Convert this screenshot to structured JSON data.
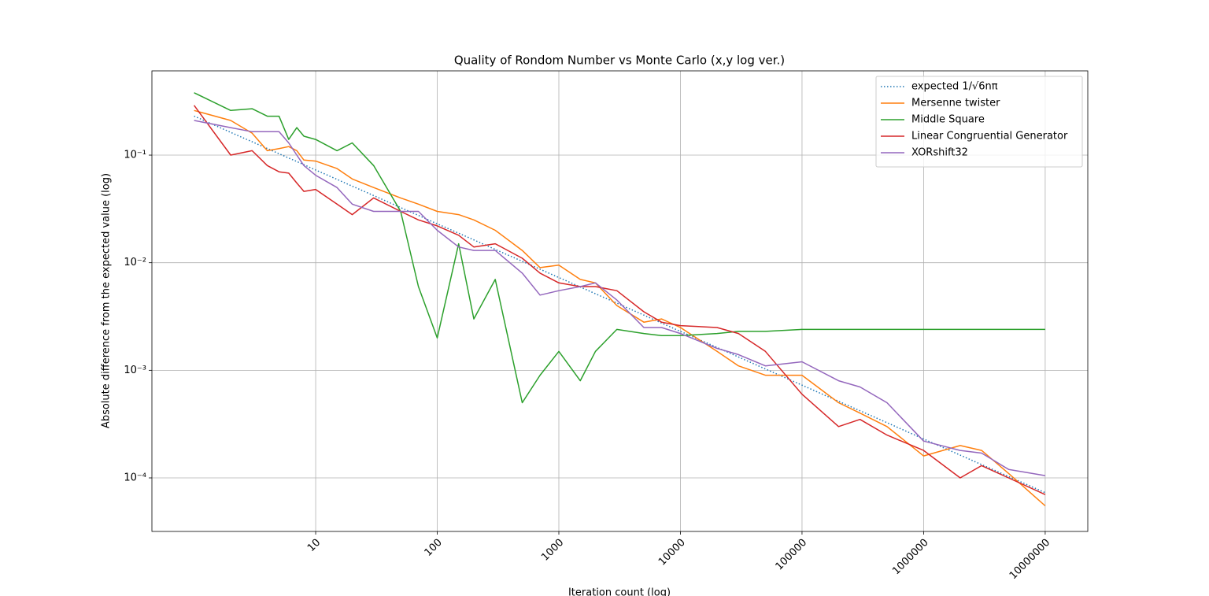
{
  "chart_data": {
    "type": "line",
    "title": "Quality of Rondom Number vs Monte Carlo (x,y log ver.)",
    "xlabel": "Iteration count (log)",
    "ylabel": "Absolute difference from the expected value (log)",
    "xscale": "log",
    "yscale": "log",
    "grid": true,
    "legend": "upper right",
    "xlim": [
      0.45,
      22400000
    ],
    "ylim": [
      3.18e-05,
      0.607
    ],
    "xticks": [
      10,
      100,
      1000,
      10000,
      100000,
      1000000,
      10000000
    ],
    "yticks": [
      {
        "value": 0.1,
        "label": "10⁻¹"
      },
      {
        "value": 0.01,
        "label": "10⁻²"
      },
      {
        "value": 0.001,
        "label": "10⁻³"
      },
      {
        "value": 0.0001,
        "label": "10⁻⁴"
      }
    ],
    "x": [
      1,
      2,
      3,
      4,
      5,
      6,
      7,
      8,
      10,
      15,
      20,
      30,
      50,
      70,
      100,
      150,
      200,
      300,
      500,
      700,
      1000,
      1500,
      2000,
      3000,
      5000,
      7000,
      10000,
      20000,
      30000,
      50000,
      100000,
      200000,
      300000,
      500000,
      1000000,
      2000000,
      3000000,
      5000000,
      10000000
    ],
    "series": [
      {
        "name": "expected 1/√6nπ",
        "color": "#1f77b4",
        "linestyle": "dotted",
        "values": [
          0.2303,
          0.1629,
          0.133,
          0.1152,
          0.103,
          0.094,
          0.0871,
          0.0814,
          0.0728,
          0.0595,
          0.0515,
          0.0421,
          0.0326,
          0.0275,
          0.023,
          0.0188,
          0.0163,
          0.0133,
          0.0103,
          0.0087,
          0.00728,
          0.00595,
          0.00515,
          0.00421,
          0.00326,
          0.00275,
          0.0023,
          0.00163,
          0.00133,
          0.00103,
          0.000728,
          0.000515,
          0.000421,
          0.000326,
          0.00023,
          0.000163,
          0.000133,
          0.000103,
          7.28e-05
        ]
      },
      {
        "name": "Mersenne twister",
        "color": "#ff7f0e",
        "values": [
          0.26,
          0.21,
          0.16,
          0.11,
          0.115,
          0.12,
          0.11,
          0.09,
          0.088,
          0.075,
          0.06,
          0.05,
          0.04,
          0.035,
          0.03,
          0.028,
          0.025,
          0.02,
          0.013,
          0.009,
          0.0095,
          0.007,
          0.0065,
          0.004,
          0.0028,
          0.003,
          0.0025,
          0.0015,
          0.0011,
          0.0009,
          0.0009,
          0.0005,
          0.0004,
          0.0003,
          0.00016,
          0.0002,
          0.00018,
          0.00011,
          5.5e-05
        ]
      },
      {
        "name": "Middle Square",
        "color": "#2ca02c",
        "values": [
          0.38,
          0.26,
          0.27,
          0.23,
          0.23,
          0.14,
          0.18,
          0.15,
          0.14,
          0.11,
          0.13,
          0.08,
          0.03,
          0.006,
          0.002,
          0.015,
          0.003,
          0.007,
          0.0005,
          0.0009,
          0.0015,
          0.0008,
          0.0015,
          0.0024,
          0.0022,
          0.0021,
          0.0021,
          0.0022,
          0.0023,
          0.0023,
          0.0024,
          0.0024,
          0.0024,
          0.0024,
          0.0024,
          0.0024,
          0.0024,
          0.0024,
          0.0024
        ]
      },
      {
        "name": "Linear Congruential Generator",
        "color": "#d62728",
        "values": [
          0.29,
          0.1,
          0.11,
          0.08,
          0.07,
          0.068,
          0.055,
          0.046,
          0.048,
          0.035,
          0.028,
          0.04,
          0.03,
          0.025,
          0.022,
          0.018,
          0.014,
          0.015,
          0.011,
          0.008,
          0.0065,
          0.006,
          0.006,
          0.0055,
          0.0035,
          0.0028,
          0.0026,
          0.0025,
          0.0022,
          0.0015,
          0.0006,
          0.0003,
          0.00035,
          0.00025,
          0.00018,
          0.0001,
          0.00013,
          0.0001,
          7e-05
        ]
      },
      {
        "name": "XORshift32",
        "color": "#9467bd",
        "values": [
          0.21,
          0.18,
          0.165,
          0.165,
          0.165,
          0.13,
          0.1,
          0.08,
          0.065,
          0.05,
          0.035,
          0.03,
          0.03,
          0.03,
          0.02,
          0.014,
          0.013,
          0.013,
          0.008,
          0.005,
          0.0055,
          0.006,
          0.0065,
          0.0045,
          0.0025,
          0.0025,
          0.0022,
          0.0016,
          0.0014,
          0.0011,
          0.0012,
          0.0008,
          0.0007,
          0.0005,
          0.00022,
          0.00018,
          0.00017,
          0.00012,
          0.000105
        ]
      }
    ]
  }
}
